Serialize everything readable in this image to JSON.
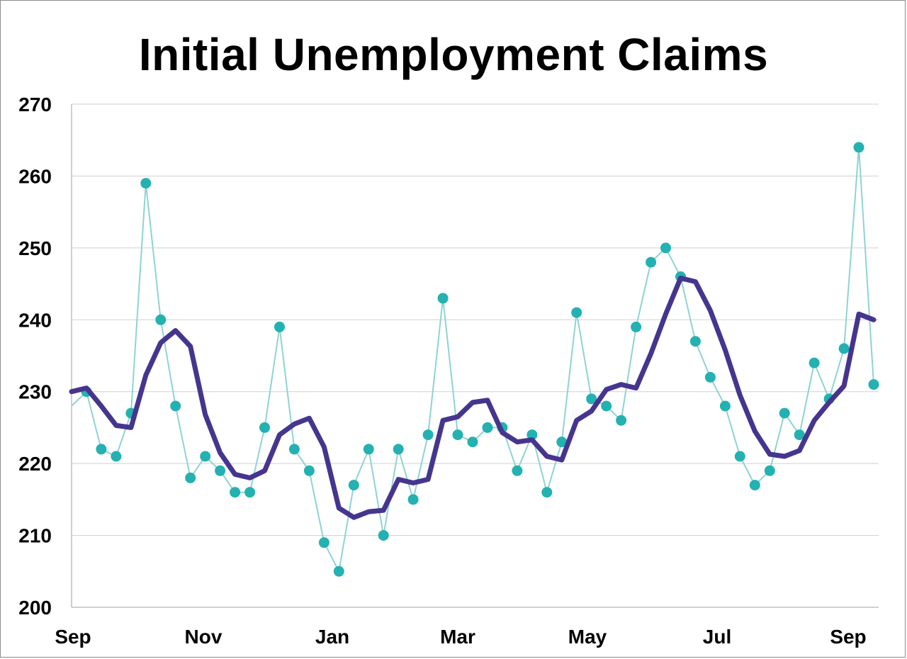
{
  "chart_data": {
    "type": "line",
    "title": "Initial Unemployment Claims",
    "xlabel": "",
    "ylabel": "",
    "ylim": [
      200,
      270
    ],
    "yticks": [
      200,
      210,
      220,
      230,
      240,
      250,
      260,
      270
    ],
    "x_tick_labels": [
      "Sep",
      "Nov",
      "Jan",
      "Mar",
      "May",
      "Jul",
      "Sep"
    ],
    "grid": true,
    "legend": "none",
    "series": [
      {
        "kind": "weekly",
        "color": "#24b1b1",
        "style": "thin line with dot markers",
        "values": [
          228,
          230,
          222,
          221,
          227,
          259,
          240,
          228,
          218,
          221,
          219,
          216,
          216,
          225,
          239,
          222,
          219,
          209,
          205,
          217,
          222,
          210,
          222,
          215,
          224,
          243,
          224,
          223,
          225,
          225,
          219,
          224,
          216,
          223,
          241,
          229,
          228,
          226,
          239,
          248,
          250,
          246,
          237,
          232,
          228,
          221,
          217,
          219,
          227,
          224,
          234,
          229,
          236,
          264,
          231
        ]
      },
      {
        "kind": "4-week average",
        "color": "#46358f",
        "style": "thick line",
        "values": [
          230,
          230.5,
          228,
          225.3,
          225,
          232.3,
          236.8,
          238.5,
          236.3,
          226.8,
          221.5,
          218.5,
          218,
          219,
          224,
          225.5,
          226.3,
          222.3,
          213.8,
          212.5,
          213.3,
          213.5,
          217.8,
          217.3,
          217.8,
          226,
          226.5,
          228.5,
          228.8,
          224.3,
          223,
          223.3,
          221,
          220.5,
          226,
          227.3,
          230.3,
          231,
          230.5,
          235.3,
          240.8,
          245.8,
          245.3,
          241.3,
          235.8,
          229.5,
          224.5,
          221.3,
          221,
          221.8,
          226,
          228.5,
          230.8,
          240.8,
          240
        ]
      }
    ]
  }
}
